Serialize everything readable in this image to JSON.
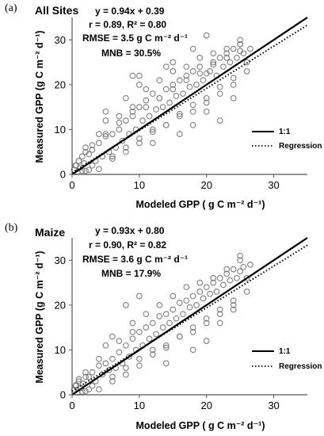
{
  "chart_data": [
    {
      "panel_label": "(a)",
      "type": "scatter",
      "title": "All Sites",
      "annotations": [
        "y = 0.94x + 0.39",
        "r = 0.89, R² = 0.80",
        "RMSE = 3.5 g C m⁻² d⁻¹",
        "MNB = 30.5%"
      ],
      "xlabel": "Modeled GPP ( g C m⁻² d⁻¹)",
      "ylabel": "Measured GPP (g C m⁻² d⁻¹)",
      "xlim": [
        0,
        35
      ],
      "ylim": [
        0,
        35
      ],
      "xticks": [
        "0",
        "10",
        "20",
        "30"
      ],
      "yticks": [
        "0",
        "10",
        "20",
        "30"
      ],
      "grid": false,
      "legend_position": "right",
      "series": [
        {
          "name": "1:1",
          "kind": "line",
          "style": "solid",
          "slope": 1.0,
          "intercept": 0.0
        },
        {
          "name": "Regression",
          "kind": "line",
          "style": "dotted",
          "slope": 0.94,
          "intercept": 0.39
        },
        {
          "kind": "scatter",
          "marker": "open-circle",
          "color": "#7f7f7f",
          "x": [
            0.3,
            0.6,
            0.8,
            1.0,
            1.2,
            1.5,
            1.8,
            2.0,
            2.5,
            3.0,
            3.5,
            4.0,
            4.5,
            5.0,
            5.5,
            6.0,
            6.5,
            7.0,
            7.5,
            8.0,
            8.5,
            9.0,
            9.5,
            10.0,
            10.5,
            11.0,
            11.5,
            12.0,
            12.5,
            13.0,
            13.5,
            14.0,
            14.5,
            15.0,
            15.5,
            16.0,
            16.5,
            17.0,
            17.5,
            18.0,
            18.5,
            19.0,
            19.5,
            20.0,
            20.5,
            21.0,
            21.5,
            22.0,
            22.5,
            23.0,
            23.5,
            24.0,
            24.5,
            25.0,
            25.5,
            26.0,
            26.5,
            1.0,
            2.0,
            3.0,
            4.0,
            5.0,
            6.0,
            7.0,
            8.0,
            9.0,
            10.0,
            11.0,
            12.0,
            13.0,
            14.0,
            15.0,
            16.0,
            17.0,
            18.0,
            19.0,
            20.0,
            21.0,
            22.0,
            23.0,
            24.0,
            25.0,
            26.0,
            2.0,
            4.0,
            6.0,
            8.0,
            10.0,
            12.0,
            14.0,
            16.0,
            18.0,
            20.0,
            22.0,
            24.0,
            3.0,
            5.0,
            7.0,
            9.0,
            11.0,
            13.0,
            15.0,
            17.0,
            19.0,
            21.0,
            23.0,
            25.0,
            8.0,
            10.0,
            12.0,
            14.0,
            16.0,
            18.0,
            20.0,
            22.0,
            24.0,
            10.0,
            15.0,
            18.0,
            20.0,
            25.0,
            9.0,
            5.0,
            0.5,
            1.5,
            2.5
          ],
          "y": [
            1.0,
            2.0,
            0.5,
            3.0,
            1.5,
            4.0,
            2.5,
            6.0,
            1.0,
            5.5,
            3.0,
            7.0,
            4.0,
            8.5,
            5.0,
            9.0,
            6.0,
            10.0,
            7.5,
            12.0,
            9.0,
            14.0,
            10.0,
            15.0,
            12.0,
            16.5,
            13.0,
            18.0,
            14.5,
            17.0,
            15.0,
            19.0,
            16.0,
            20.0,
            17.5,
            21.0,
            18.0,
            22.0,
            19.5,
            23.0,
            20.0,
            24.0,
            21.0,
            22.5,
            23.0,
            25.0,
            22.0,
            26.0,
            24.0,
            27.0,
            25.0,
            28.0,
            26.0,
            29.0,
            27.0,
            25.0,
            28.0,
            3.0,
            5.0,
            2.0,
            9.0,
            12.0,
            4.0,
            13.0,
            6.0,
            15.0,
            8.0,
            19.0,
            10.0,
            21.0,
            11.0,
            23.0,
            13.0,
            24.0,
            14.0,
            26.0,
            16.0,
            27.0,
            18.0,
            28.0,
            20.0,
            30.0,
            23.0,
            0.8,
            1.2,
            3.5,
            5.0,
            7.0,
            9.5,
            11.0,
            13.5,
            15.5,
            17.0,
            19.5,
            21.5,
            6.5,
            9.0,
            11.5,
            13.0,
            15.0,
            17.0,
            19.0,
            21.0,
            22.5,
            24.5,
            26.0,
            27.5,
            17.0,
            20.0,
            7.0,
            24.0,
            9.0,
            11.0,
            14.0,
            12.0,
            17.0,
            22.0,
            25.0,
            28.0,
            31.0,
            29.0,
            22.0,
            14.0,
            2.0,
            0.8,
            4.5
          ]
        }
      ]
    },
    {
      "panel_label": "(b)",
      "type": "scatter",
      "title": "Maize",
      "annotations": [
        "y = 0.93x + 0.80",
        "r = 0.90, R² = 0.82",
        "RMSE = 3.6 g C m⁻² d⁻¹",
        "MNB = 17.9%"
      ],
      "xlabel": "Modeled GPP ( g C m⁻² d⁻¹)",
      "ylabel": "Measured GPP (g C m⁻² d⁻¹)",
      "xlim": [
        0,
        35
      ],
      "ylim": [
        0,
        35
      ],
      "xticks": [
        "0",
        "10",
        "20",
        "30"
      ],
      "yticks": [
        "0",
        "10",
        "20",
        "30"
      ],
      "grid": false,
      "legend_position": "right",
      "series": [
        {
          "name": "1:1",
          "kind": "line",
          "style": "solid",
          "slope": 1.0,
          "intercept": 0.0
        },
        {
          "name": "Regression",
          "kind": "line",
          "style": "dotted",
          "slope": 0.93,
          "intercept": 0.8
        },
        {
          "kind": "scatter",
          "marker": "open-circle",
          "color": "#7f7f7f",
          "x": [
            0.3,
            0.6,
            0.8,
            1.0,
            1.3,
            1.6,
            2.0,
            2.5,
            3.0,
            3.5,
            4.0,
            4.5,
            5.0,
            5.5,
            6.0,
            6.5,
            7.0,
            7.5,
            8.0,
            8.5,
            9.0,
            9.5,
            10.0,
            10.5,
            11.0,
            11.5,
            12.0,
            12.5,
            13.0,
            13.5,
            14.0,
            14.5,
            15.0,
            15.5,
            16.0,
            16.5,
            17.0,
            17.5,
            18.0,
            18.5,
            19.0,
            19.5,
            20.0,
            20.5,
            21.0,
            21.5,
            22.0,
            22.5,
            23.0,
            23.5,
            24.0,
            24.5,
            25.0,
            25.5,
            26.0,
            26.5,
            1.0,
            2.0,
            3.0,
            4.0,
            5.0,
            6.0,
            7.0,
            8.0,
            9.0,
            10.0,
            11.0,
            12.0,
            13.0,
            14.0,
            15.0,
            16.0,
            17.0,
            18.0,
            19.0,
            20.0,
            21.0,
            22.0,
            23.0,
            24.0,
            25.0,
            26.0,
            2.0,
            4.0,
            6.0,
            8.0,
            10.0,
            12.0,
            14.0,
            16.0,
            18.0,
            20.0,
            22.0,
            24.0,
            8.0,
            10.0,
            14.0,
            18.0,
            20.0,
            22.0,
            24.0,
            25.0,
            9.0,
            6.0,
            0.5,
            1.5,
            2.5
          ],
          "y": [
            1.0,
            2.2,
            0.5,
            3.0,
            1.5,
            2.5,
            4.0,
            1.2,
            5.0,
            3.0,
            6.5,
            4.5,
            7.0,
            5.5,
            8.0,
            6.0,
            9.5,
            7.0,
            11.0,
            8.5,
            12.5,
            10.0,
            14.0,
            11.0,
            15.0,
            12.5,
            16.0,
            13.5,
            17.5,
            15.0,
            18.0,
            16.0,
            19.0,
            17.0,
            20.5,
            18.0,
            21.0,
            19.5,
            22.0,
            20.0,
            23.0,
            21.5,
            24.0,
            22.5,
            25.0,
            23.0,
            26.0,
            24.5,
            27.0,
            25.5,
            28.0,
            26.0,
            27.5,
            28.5,
            26.0,
            29.0,
            3.5,
            5.0,
            2.0,
            8.0,
            11.0,
            4.0,
            12.0,
            6.0,
            14.0,
            8.0,
            18.0,
            10.0,
            20.0,
            11.0,
            22.0,
            13.0,
            24.0,
            14.0,
            25.0,
            16.0,
            26.0,
            18.0,
            28.0,
            20.0,
            30.0,
            23.0,
            0.8,
            1.2,
            3.0,
            4.5,
            6.5,
            9.0,
            10.5,
            13.0,
            15.0,
            17.0,
            19.0,
            21.0,
            20.0,
            22.0,
            7.0,
            10.0,
            12.0,
            16.0,
            19.0,
            31.0,
            16.0,
            13.0,
            2.0,
            0.7,
            4.0
          ]
        }
      ]
    }
  ]
}
